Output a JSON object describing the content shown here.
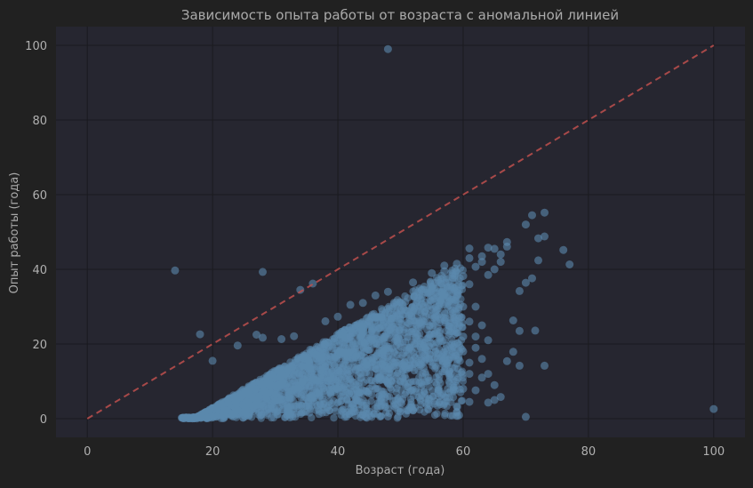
{
  "colors": {
    "figure_background": "#212121",
    "plot_background": "#262630",
    "grid": "#1a1a1f",
    "text": "#aaaaaa",
    "tick_text": "#b0b0b0",
    "points": "#5b89ad",
    "reference_line": "#c0504d"
  },
  "chart_data": {
    "type": "scatter",
    "title": "Зависимость опыта работы от возраста с аномальной линией",
    "xlabel": "Возраст (года)",
    "ylabel": "Опыт работы (года)",
    "xlim": [
      -5,
      105
    ],
    "ylim": [
      -5,
      105
    ],
    "xticks": [
      0,
      20,
      40,
      60,
      80,
      100
    ],
    "yticks": [
      0,
      20,
      40,
      60,
      80,
      100
    ],
    "grid": true,
    "legend": "none",
    "reference_line": {
      "style": "dashed",
      "points": [
        [
          0,
          0
        ],
        [
          100,
          100
        ]
      ]
    },
    "dense_region": {
      "description_points": [
        [
          15,
          0
        ],
        [
          18,
          0
        ],
        [
          22,
          6
        ],
        [
          30,
          14
        ],
        [
          40,
          22
        ],
        [
          50,
          32
        ],
        [
          57,
          40
        ],
        [
          60,
          34
        ],
        [
          60,
          10
        ],
        [
          55,
          6
        ],
        [
          40,
          2
        ],
        [
          25,
          0
        ]
      ]
    },
    "outliers": [
      [
        48,
        99
      ],
      [
        14,
        39.7
      ],
      [
        28,
        39.3
      ],
      [
        18,
        22.6
      ],
      [
        20,
        15.5
      ],
      [
        24,
        19.6
      ],
      [
        34,
        34.5
      ],
      [
        36,
        36.2
      ],
      [
        100,
        2.6
      ],
      [
        70,
        0.5
      ],
      [
        71.5,
        23.6
      ],
      [
        73,
        14.2
      ],
      [
        76,
        45.2
      ],
      [
        77,
        41.3
      ],
      [
        73,
        55.2
      ],
      [
        71,
        54.5
      ],
      [
        70,
        52
      ],
      [
        72,
        48.3
      ],
      [
        73,
        48.8
      ],
      [
        72,
        42.4
      ],
      [
        71,
        37.6
      ],
      [
        70,
        36.4
      ],
      [
        69,
        34.2
      ],
      [
        68,
        26.3
      ],
      [
        69,
        23.5
      ],
      [
        67,
        15.4
      ],
      [
        69,
        14.2
      ],
      [
        68,
        17.9
      ],
      [
        66,
        5.8
      ],
      [
        64,
        4.3
      ],
      [
        65,
        5.0
      ],
      [
        60,
        38.2
      ],
      [
        61,
        45.6
      ],
      [
        64,
        45.8
      ],
      [
        65,
        45.5
      ],
      [
        67,
        46.1
      ],
      [
        67,
        47.3
      ],
      [
        66,
        44.0
      ],
      [
        63,
        43.5
      ],
      [
        62,
        40.7
      ],
      [
        64,
        38.5
      ],
      [
        62,
        30.0
      ],
      [
        63,
        25.0
      ],
      [
        64,
        21.0
      ],
      [
        62,
        19.0
      ],
      [
        61,
        15.0
      ],
      [
        63,
        11.0
      ],
      [
        62,
        7.6
      ],
      [
        61,
        4.5
      ],
      [
        59,
        1.7
      ],
      [
        59,
        3.3
      ],
      [
        58,
        12.0
      ],
      [
        60,
        22.0
      ],
      [
        58,
        27.0
      ],
      [
        46,
        8.0
      ],
      [
        50,
        4.5
      ],
      [
        54,
        5.5
      ],
      [
        44,
        1.0
      ],
      [
        48,
        0.6
      ],
      [
        52,
        2.2
      ],
      [
        27,
        22.5
      ],
      [
        28,
        21.7
      ],
      [
        31,
        21.3
      ],
      [
        33,
        22.1
      ],
      [
        38,
        26.1
      ],
      [
        40,
        27.3
      ],
      [
        42,
        30.5
      ],
      [
        44,
        31.0
      ],
      [
        46,
        33.0
      ],
      [
        48,
        34.0
      ],
      [
        52,
        36.5
      ],
      [
        55,
        39.0
      ],
      [
        57,
        41.0
      ],
      [
        42,
        22.0
      ],
      [
        45,
        26.0
      ],
      [
        50,
        29.0
      ],
      [
        53,
        33.0
      ],
      [
        56,
        37.0
      ],
      [
        57,
        39.5
      ],
      [
        59,
        41.5
      ],
      [
        61,
        43.0
      ],
      [
        63,
        42.0
      ],
      [
        65,
        40.0
      ],
      [
        66,
        42.0
      ],
      [
        61,
        36.0
      ],
      [
        60,
        30.0
      ],
      [
        61,
        26.0
      ],
      [
        60,
        18.0
      ],
      [
        61,
        12.0
      ],
      [
        60,
        8.0
      ],
      [
        62,
        22.0
      ],
      [
        64,
        12.0
      ],
      [
        65,
        9.0
      ],
      [
        63,
        16.0
      ]
    ]
  }
}
